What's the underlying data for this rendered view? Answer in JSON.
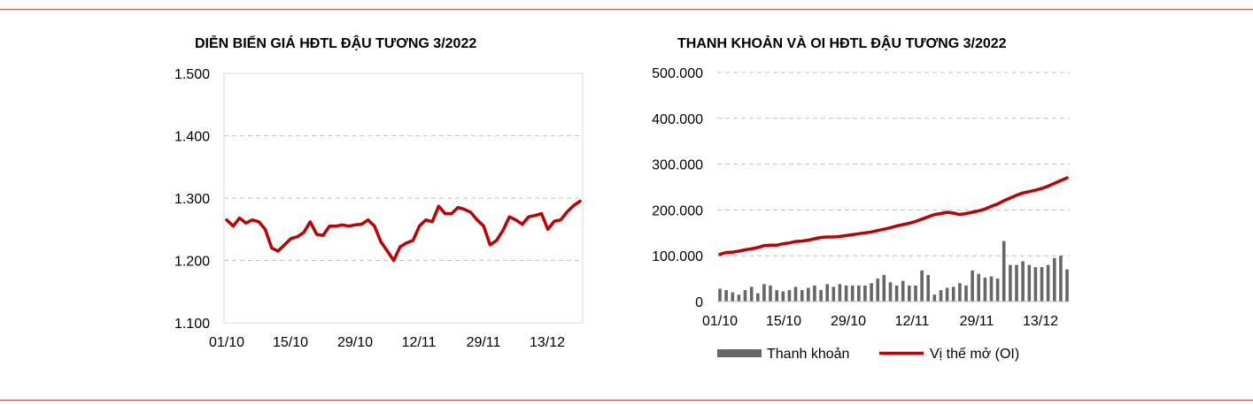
{
  "chart_data": [
    {
      "type": "line",
      "title": "DIỄN BIẾN GIÁ HĐTL ĐẬU TƯƠNG 3/2022",
      "xlabel": "",
      "ylabel": "",
      "ylim": [
        1100,
        1500
      ],
      "y_ticks": [
        1100,
        1200,
        1300,
        1400,
        1500
      ],
      "y_tick_labels": [
        "1.100",
        "1.200",
        "1.300",
        "1.400",
        "1.500"
      ],
      "x_tick_labels": [
        "01/10",
        "15/10",
        "29/10",
        "12/11",
        "29/11",
        "13/12"
      ],
      "grid": true,
      "line_color": "#c00000",
      "values": [
        1265,
        1255,
        1268,
        1260,
        1265,
        1262,
        1250,
        1220,
        1215,
        1225,
        1235,
        1238,
        1245,
        1262,
        1242,
        1240,
        1255,
        1255,
        1257,
        1255,
        1257,
        1258,
        1265,
        1255,
        1230,
        1215,
        1200,
        1222,
        1228,
        1232,
        1255,
        1265,
        1262,
        1287,
        1275,
        1275,
        1285,
        1282,
        1277,
        1265,
        1255,
        1225,
        1232,
        1248,
        1270,
        1265,
        1258,
        1270,
        1272,
        1275,
        1250,
        1263,
        1265,
        1278,
        1288,
        1295
      ]
    },
    {
      "type": "bar+line",
      "title": "THANH KHOẢN VÀ OI HĐTL ĐẬU TƯƠNG 3/2022",
      "xlabel": "",
      "ylabel": "",
      "ylim": [
        0,
        500000
      ],
      "y_ticks": [
        0,
        100000,
        200000,
        300000,
        400000,
        500000
      ],
      "y_tick_labels": [
        "0",
        "100.000",
        "200.000",
        "300.000",
        "400.000",
        "500.000"
      ],
      "x_tick_labels": [
        "01/10",
        "15/10",
        "29/10",
        "12/11",
        "29/11",
        "13/12"
      ],
      "grid": true,
      "legend": "bottom",
      "series": [
        {
          "name": "Thanh khoản",
          "type": "bar",
          "color": "#666666",
          "values": [
            28000,
            25000,
            20000,
            15000,
            25000,
            32000,
            18000,
            38000,
            35000,
            25000,
            22000,
            25000,
            32000,
            25000,
            30000,
            35000,
            25000,
            38000,
            32000,
            38000,
            35000,
            35000,
            35000,
            35000,
            40000,
            50000,
            58000,
            42000,
            35000,
            45000,
            35000,
            35000,
            68000,
            58000,
            15000,
            25000,
            30000,
            32000,
            40000,
            35000,
            68000,
            60000,
            52000,
            55000,
            50000,
            132000,
            80000,
            80000,
            88000,
            80000,
            75000,
            75000,
            80000,
            95000,
            100000,
            70000
          ]
        },
        {
          "name": "Vị thế mở (OI)",
          "type": "line",
          "color": "#c00000",
          "values": [
            103000,
            107000,
            108000,
            110000,
            113000,
            115000,
            118000,
            122000,
            123000,
            123000,
            126000,
            128000,
            131000,
            132000,
            134000,
            137000,
            140000,
            141000,
            141000,
            142000,
            144000,
            146000,
            148000,
            150000,
            152000,
            155000,
            158000,
            161000,
            165000,
            168000,
            171000,
            175000,
            180000,
            185000,
            190000,
            192000,
            195000,
            193000,
            190000,
            192000,
            195000,
            198000,
            202000,
            208000,
            213000,
            220000,
            226000,
            232000,
            237000,
            240000,
            243000,
            247000,
            252000,
            258000,
            264000,
            270000
          ]
        }
      ]
    }
  ]
}
